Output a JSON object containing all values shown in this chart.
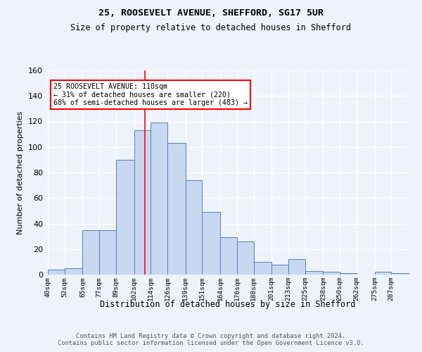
{
  "title1": "25, ROOSEVELT AVENUE, SHEFFORD, SG17 5UR",
  "title2": "Size of property relative to detached houses in Shefford",
  "xlabel": "Distribution of detached houses by size in Shefford",
  "ylabel": "Number of detached properties",
  "bin_labels": [
    "40sqm",
    "52sqm",
    "65sqm",
    "77sqm",
    "89sqm",
    "102sqm",
    "114sqm",
    "126sqm",
    "139sqm",
    "151sqm",
    "164sqm",
    "176sqm",
    "188sqm",
    "201sqm",
    "213sqm",
    "225sqm",
    "238sqm",
    "250sqm",
    "262sqm",
    "275sqm",
    "287sqm"
  ],
  "bin_edges": [
    40,
    52,
    65,
    77,
    89,
    102,
    114,
    126,
    139,
    151,
    164,
    176,
    188,
    201,
    213,
    225,
    238,
    250,
    262,
    275,
    287,
    300
  ],
  "bar_values": [
    4,
    5,
    35,
    35,
    90,
    113,
    119,
    103,
    74,
    49,
    29,
    26,
    10,
    8,
    12,
    3,
    2,
    1,
    0,
    2,
    1
  ],
  "bar_color": "#c8d8f0",
  "bar_edge_color": "#5080c0",
  "vline_x": 110,
  "vline_color": "red",
  "annotation_text": "25 ROOSEVELT AVENUE: 110sqm\n← 31% of detached houses are smaller (220)\n68% of semi-detached houses are larger (483) →",
  "annotation_box_color": "white",
  "annotation_box_edge_color": "red",
  "ylim": [
    0,
    160
  ],
  "yticks": [
    0,
    20,
    40,
    60,
    80,
    100,
    120,
    140,
    160
  ],
  "bg_color": "#eef2fb",
  "grid_color": "#ffffff",
  "footer_text": "Contains HM Land Registry data © Crown copyright and database right 2024.\nContains public sector information licensed under the Open Government Licence v3.0."
}
